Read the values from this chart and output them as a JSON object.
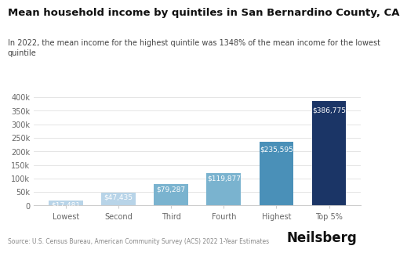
{
  "title": "Mean household income by quintiles in San Bernardino County, CA",
  "subtitle": "In 2022, the mean income for the highest quintile was 1348% of the mean income for the lowest\nquintile",
  "categories": [
    "Lowest",
    "Second",
    "Third",
    "Fourth",
    "Highest",
    "Top 5%"
  ],
  "values": [
    17481,
    47435,
    79287,
    119877,
    235595,
    386775
  ],
  "bar_colors": [
    "#b8d4e8",
    "#b8d4e8",
    "#7ab3cf",
    "#7ab3cf",
    "#4a90b8",
    "#1b3566"
  ],
  "bar_labels": [
    "$17,481",
    "$47,435",
    "$79,287",
    "$119,877",
    "$235,595",
    "$386,775"
  ],
  "ylim": [
    0,
    420000
  ],
  "yticks": [
    0,
    50000,
    100000,
    150000,
    200000,
    250000,
    300000,
    350000,
    400000
  ],
  "ytick_labels": [
    "0",
    "50k",
    "100k",
    "150k",
    "200k",
    "250k",
    "300k",
    "350k",
    "400k"
  ],
  "source": "Source: U.S. Census Bureau, American Community Survey (ACS) 2022 1-Year Estimates",
  "branding": "Neilsberg",
  "background_color": "#ffffff",
  "grid_color": "#e0e0e0",
  "title_fontsize": 9.5,
  "subtitle_fontsize": 7,
  "label_color": "#ffffff",
  "label_fontsize": 6.5,
  "tick_fontsize": 7,
  "source_fontsize": 5.5,
  "branding_fontsize": 12
}
